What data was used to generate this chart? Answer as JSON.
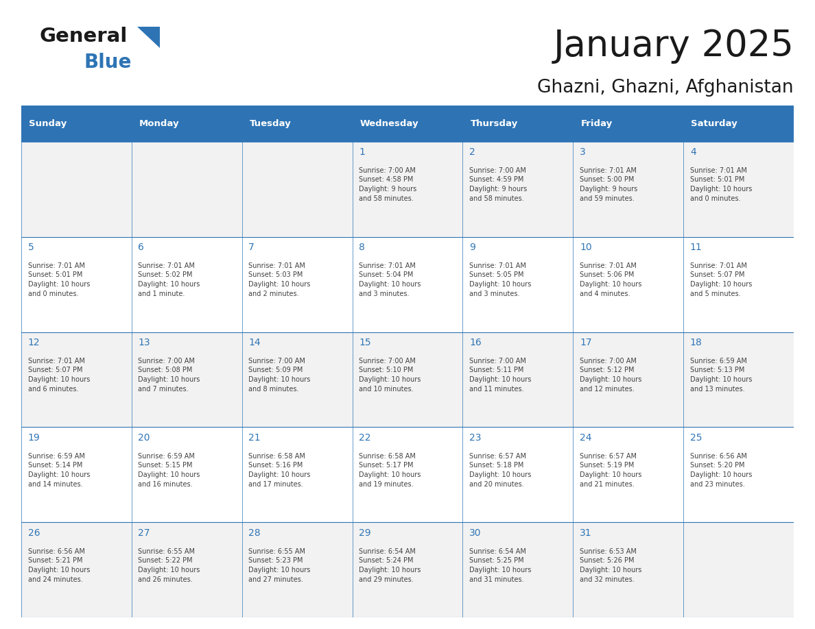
{
  "title": "January 2025",
  "subtitle": "Ghazni, Ghazni, Afghanistan",
  "days_of_week": [
    "Sunday",
    "Monday",
    "Tuesday",
    "Wednesday",
    "Thursday",
    "Friday",
    "Saturday"
  ],
  "header_bg": "#2E74B5",
  "header_text_color": "#FFFFFF",
  "cell_bg_odd": "#F2F2F2",
  "cell_bg_even": "#FFFFFF",
  "border_color": "#2E74B5",
  "day_number_color": "#2E74B5",
  "cell_text_color": "#404040",
  "title_color": "#1A1A1A",
  "subtitle_color": "#1A1A1A",
  "logo_general_color": "#1A1A1A",
  "logo_blue_color": "#2E74B5",
  "logo_triangle_color": "#2E74B5",
  "calendar_data": [
    [
      {
        "day": null,
        "sunrise": null,
        "sunset": null,
        "daylight": null
      },
      {
        "day": null,
        "sunrise": null,
        "sunset": null,
        "daylight": null
      },
      {
        "day": null,
        "sunrise": null,
        "sunset": null,
        "daylight": null
      },
      {
        "day": 1,
        "sunrise": "7:00 AM",
        "sunset": "4:58 PM",
        "daylight": "9 hours\nand 58 minutes."
      },
      {
        "day": 2,
        "sunrise": "7:00 AM",
        "sunset": "4:59 PM",
        "daylight": "9 hours\nand 58 minutes."
      },
      {
        "day": 3,
        "sunrise": "7:01 AM",
        "sunset": "5:00 PM",
        "daylight": "9 hours\nand 59 minutes."
      },
      {
        "day": 4,
        "sunrise": "7:01 AM",
        "sunset": "5:01 PM",
        "daylight": "10 hours\nand 0 minutes."
      }
    ],
    [
      {
        "day": 5,
        "sunrise": "7:01 AM",
        "sunset": "5:01 PM",
        "daylight": "10 hours\nand 0 minutes."
      },
      {
        "day": 6,
        "sunrise": "7:01 AM",
        "sunset": "5:02 PM",
        "daylight": "10 hours\nand 1 minute."
      },
      {
        "day": 7,
        "sunrise": "7:01 AM",
        "sunset": "5:03 PM",
        "daylight": "10 hours\nand 2 minutes."
      },
      {
        "day": 8,
        "sunrise": "7:01 AM",
        "sunset": "5:04 PM",
        "daylight": "10 hours\nand 3 minutes."
      },
      {
        "day": 9,
        "sunrise": "7:01 AM",
        "sunset": "5:05 PM",
        "daylight": "10 hours\nand 3 minutes."
      },
      {
        "day": 10,
        "sunrise": "7:01 AM",
        "sunset": "5:06 PM",
        "daylight": "10 hours\nand 4 minutes."
      },
      {
        "day": 11,
        "sunrise": "7:01 AM",
        "sunset": "5:07 PM",
        "daylight": "10 hours\nand 5 minutes."
      }
    ],
    [
      {
        "day": 12,
        "sunrise": "7:01 AM",
        "sunset": "5:07 PM",
        "daylight": "10 hours\nand 6 minutes."
      },
      {
        "day": 13,
        "sunrise": "7:00 AM",
        "sunset": "5:08 PM",
        "daylight": "10 hours\nand 7 minutes."
      },
      {
        "day": 14,
        "sunrise": "7:00 AM",
        "sunset": "5:09 PM",
        "daylight": "10 hours\nand 8 minutes."
      },
      {
        "day": 15,
        "sunrise": "7:00 AM",
        "sunset": "5:10 PM",
        "daylight": "10 hours\nand 10 minutes."
      },
      {
        "day": 16,
        "sunrise": "7:00 AM",
        "sunset": "5:11 PM",
        "daylight": "10 hours\nand 11 minutes."
      },
      {
        "day": 17,
        "sunrise": "7:00 AM",
        "sunset": "5:12 PM",
        "daylight": "10 hours\nand 12 minutes."
      },
      {
        "day": 18,
        "sunrise": "6:59 AM",
        "sunset": "5:13 PM",
        "daylight": "10 hours\nand 13 minutes."
      }
    ],
    [
      {
        "day": 19,
        "sunrise": "6:59 AM",
        "sunset": "5:14 PM",
        "daylight": "10 hours\nand 14 minutes."
      },
      {
        "day": 20,
        "sunrise": "6:59 AM",
        "sunset": "5:15 PM",
        "daylight": "10 hours\nand 16 minutes."
      },
      {
        "day": 21,
        "sunrise": "6:58 AM",
        "sunset": "5:16 PM",
        "daylight": "10 hours\nand 17 minutes."
      },
      {
        "day": 22,
        "sunrise": "6:58 AM",
        "sunset": "5:17 PM",
        "daylight": "10 hours\nand 19 minutes."
      },
      {
        "day": 23,
        "sunrise": "6:57 AM",
        "sunset": "5:18 PM",
        "daylight": "10 hours\nand 20 minutes."
      },
      {
        "day": 24,
        "sunrise": "6:57 AM",
        "sunset": "5:19 PM",
        "daylight": "10 hours\nand 21 minutes."
      },
      {
        "day": 25,
        "sunrise": "6:56 AM",
        "sunset": "5:20 PM",
        "daylight": "10 hours\nand 23 minutes."
      }
    ],
    [
      {
        "day": 26,
        "sunrise": "6:56 AM",
        "sunset": "5:21 PM",
        "daylight": "10 hours\nand 24 minutes."
      },
      {
        "day": 27,
        "sunrise": "6:55 AM",
        "sunset": "5:22 PM",
        "daylight": "10 hours\nand 26 minutes."
      },
      {
        "day": 28,
        "sunrise": "6:55 AM",
        "sunset": "5:23 PM",
        "daylight": "10 hours\nand 27 minutes."
      },
      {
        "day": 29,
        "sunrise": "6:54 AM",
        "sunset": "5:24 PM",
        "daylight": "10 hours\nand 29 minutes."
      },
      {
        "day": 30,
        "sunrise": "6:54 AM",
        "sunset": "5:25 PM",
        "daylight": "10 hours\nand 31 minutes."
      },
      {
        "day": 31,
        "sunrise": "6:53 AM",
        "sunset": "5:26 PM",
        "daylight": "10 hours\nand 32 minutes."
      },
      {
        "day": null,
        "sunrise": null,
        "sunset": null,
        "daylight": null
      }
    ]
  ]
}
